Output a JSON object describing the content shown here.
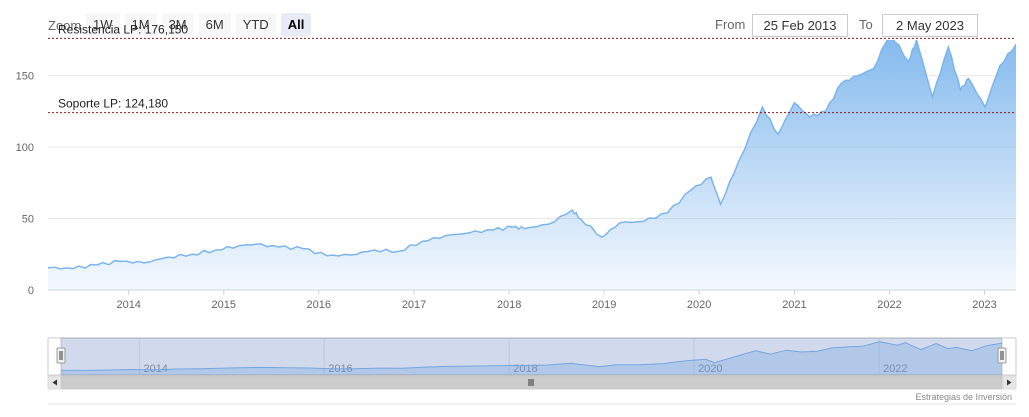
{
  "toolbar": {
    "zoom_label": "Zoom",
    "zoom_buttons": [
      "1W",
      "1M",
      "3M",
      "6M",
      "YTD",
      "All"
    ],
    "active_zoom": "All",
    "from_label": "From",
    "from_value": "25 Feb 2013",
    "to_label": "To",
    "to_value": "2 May 2023"
  },
  "credits": "Estrategias de Inversión",
  "colors": {
    "series_line": "#7cb5ec",
    "plot_lines": "#8b1a1a"
  },
  "chart_data": {
    "type": "area",
    "title": "",
    "xlabel": "",
    "ylabel": "",
    "x_range": [
      "2013-02-25",
      "2023-05-02"
    ],
    "ylim": [
      0,
      175
    ],
    "y_ticks": [
      0,
      50,
      100,
      150
    ],
    "x_ticks": [
      "2014",
      "2015",
      "2016",
      "2017",
      "2018",
      "2019",
      "2020",
      "2021",
      "2022",
      "2023"
    ],
    "navigator_x_ticks": [
      "2014",
      "2016",
      "2018",
      "2020",
      "2022"
    ],
    "plot_lines": [
      {
        "label": "Resistencia LP: 176,150",
        "value": 176.15
      },
      {
        "label": "Soporte LP: 124,180",
        "value": 124.18
      }
    ],
    "series": [
      {
        "x": [
          "2013-02-25",
          "2013-06-01",
          "2013-09-01",
          "2013-12-01",
          "2014-03-01",
          "2014-06-01",
          "2014-09-01",
          "2014-12-01",
          "2015-03-01",
          "2015-05-01",
          "2015-08-01",
          "2015-11-01",
          "2016-02-01",
          "2016-05-01",
          "2016-08-01",
          "2016-11-01",
          "2017-02-01",
          "2017-05-01",
          "2017-08-01",
          "2017-11-01",
          "2018-01-15",
          "2018-03-01",
          "2018-06-01",
          "2018-09-01",
          "2018-10-01",
          "2018-12-24",
          "2019-03-01",
          "2019-06-01",
          "2019-09-01",
          "2019-12-01",
          "2020-02-15",
          "2020-03-23",
          "2020-06-01",
          "2020-08-31",
          "2020-10-30",
          "2020-12-31",
          "2021-03-01",
          "2021-05-01",
          "2021-07-01",
          "2021-09-01",
          "2021-11-01",
          "2022-01-03",
          "2022-03-15",
          "2022-04-15",
          "2022-06-15",
          "2022-08-15",
          "2022-10-01",
          "2022-11-01",
          "2023-01-03",
          "2023-03-01",
          "2023-05-02"
        ],
        "y": [
          15.5,
          15,
          17.5,
          20,
          19,
          23,
          25,
          28,
          31,
          32,
          30,
          29,
          24,
          24.5,
          28,
          27,
          34,
          38,
          40,
          42,
          44,
          43,
          46,
          56,
          50,
          37,
          47,
          48,
          54,
          70,
          79,
          60,
          90,
          128,
          109,
          131,
          121,
          125,
          145,
          150,
          155,
          180,
          160,
          175,
          135,
          170,
          140,
          148,
          128,
          157,
          172
        ]
      }
    ]
  }
}
